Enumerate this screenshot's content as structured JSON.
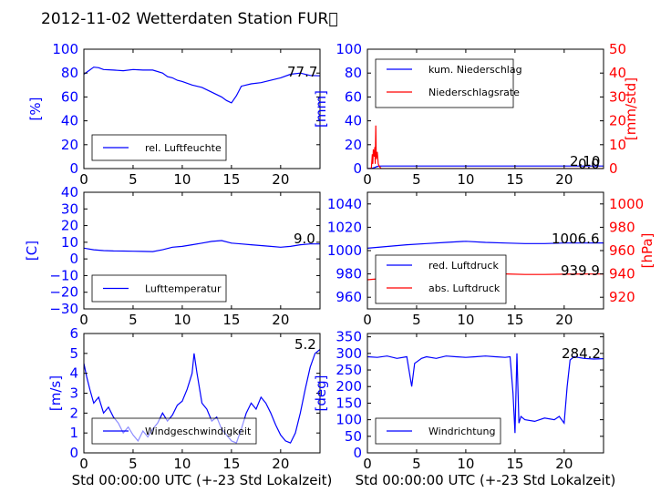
{
  "title": "2012-11-02 Wetterdaten Station FUR\u0000",
  "colors": {
    "primary": "#0000ff",
    "secondary": "#ff0000",
    "text": "#000000"
  },
  "chart_data": [
    {
      "type": "line",
      "ylabel": "[%]",
      "xlim": [
        0,
        24
      ],
      "xticks": [
        0,
        5,
        10,
        15,
        20
      ],
      "ylim": [
        0,
        100
      ],
      "yticks": [
        0,
        20,
        40,
        60,
        80,
        100
      ],
      "last_value": "77.7",
      "legend": {
        "placement": "lower-left",
        "entries": [
          "rel. Luftfeuchte"
        ]
      },
      "series": [
        {
          "name": "rel. Luftfeuchte",
          "axis": "left",
          "color": "#0000ff",
          "x": [
            0,
            0.5,
            1,
            1.5,
            2,
            3,
            4,
            5,
            6,
            7,
            8,
            8.5,
            9,
            9.5,
            10,
            11,
            12,
            13,
            14,
            14.5,
            15,
            15.5,
            16,
            17,
            18,
            19,
            20,
            21,
            22,
            23,
            24
          ],
          "y": [
            79,
            82,
            85,
            84.5,
            83,
            82.5,
            82,
            83,
            82.5,
            82.5,
            80,
            77,
            76,
            74,
            73,
            70,
            68,
            64,
            60,
            57,
            55,
            61,
            69,
            71,
            72,
            74,
            76,
            79,
            80,
            78,
            77.7
          ]
        }
      ]
    },
    {
      "type": "line",
      "ylabel": "[mm]",
      "y2label": "[mm/std]",
      "xlim": [
        0,
        24
      ],
      "xticks": [
        0,
        5,
        10,
        15,
        20
      ],
      "ylim": [
        0,
        100
      ],
      "yticks": [
        0,
        20,
        40,
        60,
        80,
        100
      ],
      "y2lim": [
        0,
        50
      ],
      "y2ticks": [
        0,
        10,
        20,
        30,
        40,
        50
      ],
      "last_value": "2.10",
      "last_value2": "0.0",
      "legend": {
        "placement": "upper-left",
        "entries": [
          "kum. Niederschlag",
          "Niederschlagsrate"
        ]
      },
      "series": [
        {
          "name": "kum. Niederschlag",
          "axis": "left",
          "color": "#0000ff",
          "x": [
            0,
            0.5,
            0.7,
            0.9,
            1.1,
            1.5,
            24
          ],
          "y": [
            0,
            0.3,
            0.8,
            1.5,
            2.0,
            2.1,
            2.1
          ]
        },
        {
          "name": "Niederschlagsrate",
          "axis": "right",
          "color": "#ff0000",
          "x": [
            0,
            0.4,
            0.5,
            0.55,
            0.6,
            0.7,
            0.75,
            0.8,
            0.85,
            0.9,
            1.0,
            1.1,
            1.2,
            1.4,
            24
          ],
          "y": [
            0,
            0,
            6,
            2,
            8,
            5,
            9,
            2,
            18,
            4,
            7,
            2,
            1,
            0,
            0
          ]
        }
      ]
    },
    {
      "type": "line",
      "ylabel": "[C]",
      "xlim": [
        0,
        24
      ],
      "xticks": [
        0,
        5,
        10,
        15,
        20
      ],
      "ylim": [
        -30,
        40
      ],
      "yticks": [
        -30,
        -20,
        -10,
        0,
        10,
        20,
        30,
        40
      ],
      "last_value": "9.0",
      "legend": {
        "placement": "lower-left",
        "entries": [
          "Lufttemperatur"
        ]
      },
      "series": [
        {
          "name": "Lufttemperatur",
          "axis": "left",
          "color": "#0000ff",
          "x": [
            0,
            1,
            2,
            3,
            4,
            5,
            6,
            7,
            8,
            9,
            10,
            11,
            12,
            13,
            14,
            15,
            16,
            17,
            18,
            19,
            20,
            21,
            22,
            23,
            24
          ],
          "y": [
            6.5,
            5.5,
            5.0,
            4.8,
            4.7,
            4.6,
            4.5,
            4.4,
            5.5,
            7.0,
            7.5,
            8.5,
            9.5,
            10.5,
            11.0,
            9.5,
            9.0,
            8.5,
            8.0,
            7.5,
            7.0,
            7.5,
            8.5,
            9.0,
            9.0
          ]
        }
      ]
    },
    {
      "type": "line",
      "ylabel": "",
      "y2label": "[hPa]",
      "xlim": [
        0,
        24
      ],
      "xticks": [
        0,
        5,
        10,
        15,
        20
      ],
      "ylim": [
        950,
        1050
      ],
      "yticks": [
        960,
        980,
        1000,
        1020,
        1040
      ],
      "y2lim": [
        910,
        1010
      ],
      "y2ticks": [
        920,
        940,
        960,
        980,
        1000
      ],
      "last_value": "1006.6",
      "last_value2": "939.9",
      "legend": {
        "placement": "lower-left",
        "entries": [
          "red. Luftdruck",
          "abs. Luftdruck"
        ]
      },
      "series": [
        {
          "name": "red. Luftdruck",
          "axis": "left",
          "color": "#0000ff",
          "x": [
            0,
            2,
            4,
            6,
            8,
            10,
            12,
            14,
            16,
            18,
            20,
            22,
            24
          ],
          "y": [
            1002,
            1003.5,
            1005,
            1006,
            1007,
            1008,
            1007,
            1006.5,
            1006,
            1006,
            1006.5,
            1006.5,
            1006.6
          ]
        },
        {
          "name": "abs. Luftdruck",
          "axis": "right",
          "color": "#ff0000",
          "x": [
            0,
            2,
            4,
            6,
            8,
            10,
            12,
            14,
            16,
            18,
            20,
            22,
            24
          ],
          "y": [
            935,
            936.5,
            938,
            939,
            940,
            941,
            940.5,
            940,
            939.5,
            939.5,
            939.8,
            939.9,
            939.9
          ]
        }
      ]
    },
    {
      "type": "line",
      "ylabel": "[m/s]",
      "xlabel": "Std 00:00:00 UTC (+-23 Std Lokalzeit)",
      "xlim": [
        0,
        24
      ],
      "xticks": [
        0,
        5,
        10,
        15,
        20
      ],
      "ylim": [
        0,
        6
      ],
      "yticks": [
        0,
        1,
        2,
        3,
        4,
        5,
        6
      ],
      "last_value": "5.2",
      "legend": {
        "placement": "lower-left",
        "entries": [
          "Windgeschwindigkeit"
        ]
      },
      "series": [
        {
          "name": "Windgeschwindigkeit",
          "axis": "left",
          "color": "#0000ff",
          "x": [
            0,
            0.3,
            0.6,
            1,
            1.5,
            2,
            2.5,
            3,
            3.5,
            4,
            4.5,
            5,
            5.5,
            6,
            6.5,
            7,
            7.5,
            8,
            8.5,
            9,
            9.5,
            10,
            10.5,
            11,
            11.2,
            11.5,
            12,
            12.5,
            13,
            13.5,
            14,
            14.5,
            15,
            15.5,
            16,
            16.5,
            17,
            17.5,
            18,
            18.5,
            19,
            19.5,
            20,
            20.5,
            21,
            21.5,
            22,
            22.5,
            23,
            23.5,
            24
          ],
          "y": [
            4.5,
            3.8,
            3.2,
            2.5,
            2.8,
            2.0,
            2.3,
            1.8,
            1.5,
            1.0,
            1.3,
            0.9,
            0.6,
            1.1,
            0.8,
            1.2,
            1.5,
            2.0,
            1.6,
            1.9,
            2.4,
            2.6,
            3.2,
            4.0,
            5.0,
            4.0,
            2.5,
            2.2,
            1.6,
            1.8,
            1.2,
            0.9,
            0.6,
            0.5,
            1.2,
            2.0,
            2.5,
            2.2,
            2.8,
            2.5,
            2.0,
            1.4,
            0.9,
            0.6,
            0.5,
            1.0,
            2.0,
            3.2,
            4.3,
            5.0,
            5.2
          ]
        }
      ]
    },
    {
      "type": "line",
      "ylabel": "[deg]",
      "xlabel": "Std 00:00:00 UTC (+-23 Std Lokalzeit)",
      "xlim": [
        0,
        24
      ],
      "xticks": [
        0,
        5,
        10,
        15,
        20
      ],
      "ylim": [
        0,
        360
      ],
      "yticks": [
        0,
        50,
        100,
        150,
        200,
        250,
        300,
        350
      ],
      "last_value": "284.2",
      "legend": {
        "placement": "lower-left",
        "entries": [
          "Windrichtung"
        ]
      },
      "series": [
        {
          "name": "Windrichtung",
          "axis": "left",
          "color": "#0000ff",
          "x": [
            0,
            1,
            2,
            3,
            4,
            4.5,
            4.8,
            5.5,
            6,
            7,
            8,
            9,
            10,
            11,
            12,
            13,
            14,
            14.5,
            14.8,
            15,
            15.2,
            15.4,
            15.6,
            16,
            17,
            18,
            19,
            19.5,
            20,
            20.3,
            20.6,
            21,
            22,
            23,
            24
          ],
          "y": [
            290,
            288,
            292,
            285,
            290,
            200,
            270,
            285,
            290,
            285,
            292,
            290,
            288,
            290,
            292,
            290,
            288,
            290,
            180,
            60,
            300,
            90,
            110,
            100,
            95,
            105,
            100,
            110,
            90,
            200,
            280,
            290,
            285,
            283,
            284.2
          ]
        }
      ]
    }
  ]
}
